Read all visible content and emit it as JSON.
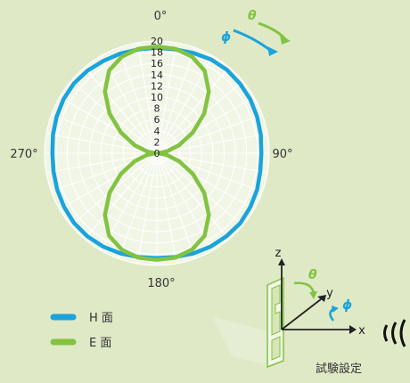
{
  "chart_data": {
    "type": "polar",
    "angle_labels": [
      "0°",
      "90°",
      "180°",
      "270°"
    ],
    "radial_ticks": [
      0,
      2,
      4,
      6,
      8,
      10,
      12,
      14,
      16,
      18,
      20
    ],
    "rlim": [
      0,
      20
    ],
    "grid": true,
    "legend_position": "bottom-left",
    "angles_deg": [
      0,
      10,
      20,
      30,
      40,
      50,
      60,
      70,
      80,
      90,
      100,
      110,
      120,
      130,
      140,
      150,
      160,
      170,
      180,
      190,
      200,
      210,
      220,
      230,
      240,
      250,
      260,
      270,
      280,
      290,
      300,
      310,
      320,
      330,
      340,
      350
    ],
    "series": [
      {
        "name": "H 面",
        "color": "#1aa3dc",
        "values": [
          18.8,
          18.8,
          19.0,
          19.3,
          19.4,
          19.3,
          19.2,
          19.0,
          18.8,
          18.6,
          18.7,
          19.0,
          19.2,
          19.4,
          19.3,
          19.2,
          19.0,
          18.8,
          18.7,
          18.8,
          19.0,
          19.2,
          19.3,
          19.3,
          19.1,
          18.9,
          18.7,
          18.6,
          18.8,
          19.0,
          19.2,
          19.3,
          19.2,
          19.0,
          18.9,
          18.8
        ]
      },
      {
        "name": "E 面",
        "color": "#82c341",
        "values": [
          19.0,
          18.9,
          18.3,
          17.0,
          14.4,
          11.0,
          7.4,
          4.2,
          1.8,
          0.3,
          1.8,
          4.2,
          7.4,
          11.0,
          14.4,
          17.0,
          18.3,
          18.9,
          19.0,
          18.9,
          18.3,
          17.0,
          14.4,
          11.0,
          7.4,
          4.2,
          1.8,
          0.3,
          1.8,
          4.2,
          7.4,
          11.0,
          14.4,
          17.0,
          18.3,
          18.9
        ]
      }
    ]
  },
  "setup": {
    "phi_symbol": "ϕ",
    "theta_symbol": "θ",
    "axis_z": "z",
    "axis_y": "y",
    "axis_x": "x",
    "caption": "試験設定"
  },
  "colors": {
    "h_plane": "#1aa3dc",
    "e_plane": "#82c341",
    "background": "#dfe9c6"
  }
}
